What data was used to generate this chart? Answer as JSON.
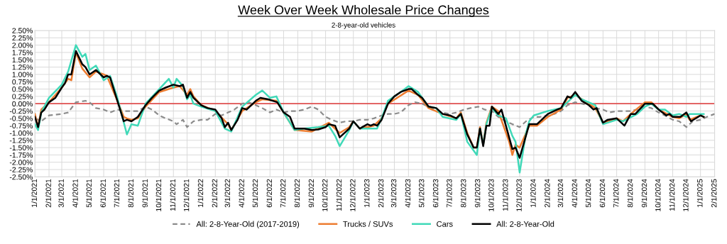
{
  "chart_data": {
    "type": "line",
    "title": "Week Over Week Wholesale Price Changes",
    "subtitle": "2-8-year-old vehicles",
    "xlim": [
      "2021-01-01",
      "2025-02-01"
    ],
    "xticks": [
      {
        "value": "2021-01-01",
        "label": "1/1/2021"
      },
      {
        "value": "2021-02-01",
        "label": "2/1/2021"
      },
      {
        "value": "2021-03-01",
        "label": "3/1/2021"
      },
      {
        "value": "2021-04-01",
        "label": "4/1/2021"
      },
      {
        "value": "2021-05-01",
        "label": "5/1/2021"
      },
      {
        "value": "2021-06-01",
        "label": "6/1/2021"
      },
      {
        "value": "2021-07-01",
        "label": "7/1/2021"
      },
      {
        "value": "2021-08-01",
        "label": "8/1/2021"
      },
      {
        "value": "2021-09-01",
        "label": "9/1/2021"
      },
      {
        "value": "2021-10-01",
        "label": "10/1/2021"
      },
      {
        "value": "2021-11-01",
        "label": "11/1/2021"
      },
      {
        "value": "2021-12-01",
        "label": "12/1/2021"
      },
      {
        "value": "2022-01-01",
        "label": "1/1/2022"
      },
      {
        "value": "2022-02-01",
        "label": "2/1/2022"
      },
      {
        "value": "2022-03-01",
        "label": "3/1/2022"
      },
      {
        "value": "2022-04-01",
        "label": "4/1/2022"
      },
      {
        "value": "2022-05-01",
        "label": "5/1/2022"
      },
      {
        "value": "2022-06-01",
        "label": "6/1/2022"
      },
      {
        "value": "2022-07-01",
        "label": "7/1/2022"
      },
      {
        "value": "2022-08-01",
        "label": "8/1/2022"
      },
      {
        "value": "2022-09-01",
        "label": "9/1/2022"
      },
      {
        "value": "2022-10-01",
        "label": "10/1/2022"
      },
      {
        "value": "2022-11-01",
        "label": "11/1/2022"
      },
      {
        "value": "2022-12-01",
        "label": "12/1/2022"
      },
      {
        "value": "2023-01-01",
        "label": "1/1/2023"
      },
      {
        "value": "2023-02-01",
        "label": "2/1/2023"
      },
      {
        "value": "2023-03-01",
        "label": "3/1/2023"
      },
      {
        "value": "2023-04-01",
        "label": "4/1/2023"
      },
      {
        "value": "2023-05-01",
        "label": "5/1/2023"
      },
      {
        "value": "2023-06-01",
        "label": "6/1/2023"
      },
      {
        "value": "2023-07-01",
        "label": "7/1/2023"
      },
      {
        "value": "2023-08-01",
        "label": "8/1/2023"
      },
      {
        "value": "2023-09-01",
        "label": "9/1/2023"
      },
      {
        "value": "2023-10-01",
        "label": "10/1/2023"
      },
      {
        "value": "2023-11-01",
        "label": "11/1/2023"
      },
      {
        "value": "2023-12-01",
        "label": "12/1/2023"
      },
      {
        "value": "2024-01-01",
        "label": "1/1/2024"
      },
      {
        "value": "2024-02-01",
        "label": "2/1/2024"
      },
      {
        "value": "2024-03-01",
        "label": "3/1/2024"
      },
      {
        "value": "2024-04-01",
        "label": "4/1/2024"
      },
      {
        "value": "2024-05-01",
        "label": "5/1/2024"
      },
      {
        "value": "2024-06-01",
        "label": "6/1/2024"
      },
      {
        "value": "2024-07-01",
        "label": "7/1/2024"
      },
      {
        "value": "2024-08-01",
        "label": "8/1/2024"
      },
      {
        "value": "2024-09-01",
        "label": "9/1/2024"
      },
      {
        "value": "2024-10-01",
        "label": "10/1/2024"
      },
      {
        "value": "2024-11-01",
        "label": "11/1/2024"
      },
      {
        "value": "2024-12-01",
        "label": "12/1/2024"
      },
      {
        "value": "2025-01-01",
        "label": "1/1/2025"
      },
      {
        "value": "2025-02-01",
        "label": "2/1/2025"
      }
    ],
    "ylim": [
      -2.5,
      2.5
    ],
    "yticks": [
      {
        "value": -2.5,
        "label": "-2.50%"
      },
      {
        "value": -2.25,
        "label": "-2.25%"
      },
      {
        "value": -2.0,
        "label": "-2.00%"
      },
      {
        "value": -1.75,
        "label": "-1.75%"
      },
      {
        "value": -1.5,
        "label": "-1.50%"
      },
      {
        "value": -1.25,
        "label": "-1.25%"
      },
      {
        "value": -1.0,
        "label": "-1.00%"
      },
      {
        "value": -0.75,
        "label": "-0.75%"
      },
      {
        "value": -0.5,
        "label": "-0.50%"
      },
      {
        "value": -0.25,
        "label": "-0.25%"
      },
      {
        "value": 0,
        "label": "0.00%"
      },
      {
        "value": 0.25,
        "label": "0.25%"
      },
      {
        "value": 0.5,
        "label": "0.50%"
      },
      {
        "value": 0.75,
        "label": "0.75%"
      },
      {
        "value": 1.0,
        "label": "1.00%"
      },
      {
        "value": 1.25,
        "label": "1.25%"
      },
      {
        "value": 1.5,
        "label": "1.50%"
      },
      {
        "value": 1.75,
        "label": "1.75%"
      },
      {
        "value": 2.0,
        "label": "2.00%"
      },
      {
        "value": 2.25,
        "label": "2.25%"
      },
      {
        "value": 2.5,
        "label": "2.50%"
      }
    ],
    "grid": true,
    "legend": "bottom",
    "marker": "none",
    "ref_lines": [
      {
        "axis": "y",
        "value": 0,
        "label": null,
        "color": "#e05050",
        "line_style": "solid"
      }
    ],
    "series": [
      {
        "name": "All: 2-8-Year-Old (2017-2019)",
        "color": "#8c8c8c",
        "line_style": "dashed",
        "x": [
          "2021-01-01",
          "2021-01-15",
          "2021-02-01",
          "2021-03-01",
          "2021-03-15",
          "2021-04-01",
          "2021-04-22",
          "2021-05-01",
          "2021-05-15",
          "2021-06-01",
          "2021-06-15",
          "2021-07-01",
          "2021-07-15",
          "2021-08-01",
          "2021-08-15",
          "2021-09-01",
          "2021-09-15",
          "2021-10-01",
          "2021-10-15",
          "2021-11-01",
          "2021-11-08",
          "2021-11-22",
          "2021-12-01",
          "2021-12-15",
          "2022-01-01",
          "2022-01-15",
          "2022-02-01",
          "2022-02-15",
          "2022-03-01",
          "2022-03-15",
          "2022-04-01",
          "2022-04-15",
          "2022-05-01",
          "2022-05-15",
          "2022-06-01",
          "2022-06-15",
          "2022-07-01",
          "2022-07-15",
          "2022-08-01",
          "2022-08-15",
          "2022-09-01",
          "2022-09-15",
          "2022-10-01",
          "2022-10-15",
          "2022-11-01",
          "2022-11-15",
          "2022-12-01",
          "2022-12-15",
          "2023-01-01",
          "2023-01-15",
          "2023-02-01",
          "2023-02-15",
          "2023-03-01",
          "2023-03-15",
          "2023-04-01",
          "2023-04-15",
          "2023-05-01",
          "2023-05-15",
          "2023-06-01",
          "2023-06-15",
          "2023-07-01",
          "2023-07-15",
          "2023-08-01",
          "2023-08-15",
          "2023-09-01",
          "2023-09-15",
          "2023-10-01",
          "2023-10-15",
          "2023-11-01",
          "2023-11-15",
          "2023-12-01",
          "2023-12-15",
          "2024-01-01",
          "2024-01-15",
          "2024-02-01",
          "2024-02-15",
          "2024-03-01",
          "2024-03-15",
          "2024-04-01",
          "2024-04-15",
          "2024-05-01",
          "2024-05-15",
          "2024-06-01",
          "2024-06-15",
          "2024-07-01",
          "2024-07-15",
          "2024-08-01",
          "2024-08-15",
          "2024-09-01",
          "2024-09-15",
          "2024-10-01",
          "2024-10-15",
          "2024-11-01",
          "2024-11-15",
          "2024-12-01",
          "2024-12-15",
          "2025-01-01",
          "2025-01-15",
          "2025-02-01"
        ],
        "values": [
          -0.5,
          -0.6,
          -0.4,
          -0.35,
          -0.3,
          0.05,
          0.1,
          0.05,
          -0.15,
          -0.2,
          -0.3,
          -0.2,
          -0.25,
          -0.25,
          -0.25,
          -0.1,
          -0.2,
          -0.4,
          -0.5,
          -0.6,
          -0.7,
          -0.55,
          -0.8,
          -0.6,
          -0.55,
          -0.55,
          -0.35,
          -0.4,
          -0.3,
          -0.2,
          0.0,
          0.05,
          -0.05,
          -0.15,
          -0.3,
          -0.2,
          -0.3,
          -0.25,
          -0.25,
          -0.2,
          -0.1,
          -0.2,
          -0.45,
          -0.55,
          -0.65,
          -0.6,
          -0.6,
          -0.55,
          -0.55,
          -0.5,
          -0.4,
          -0.35,
          -0.35,
          -0.3,
          -0.05,
          0.05,
          0.0,
          -0.1,
          -0.25,
          -0.3,
          -0.35,
          -0.3,
          -0.2,
          -0.15,
          -0.1,
          -0.2,
          -0.25,
          -0.45,
          -0.6,
          -0.7,
          -0.8,
          -0.6,
          -0.45,
          -0.45,
          -0.4,
          -0.35,
          -0.25,
          -0.05,
          0.05,
          0.0,
          -0.05,
          -0.15,
          -0.2,
          -0.3,
          -0.25,
          -0.25,
          -0.25,
          -0.2,
          -0.1,
          -0.15,
          -0.3,
          -0.4,
          -0.55,
          -0.6,
          -0.8,
          -0.6,
          -0.55,
          -0.45,
          -0.35
        ]
      },
      {
        "name": "Trucks / SUVs",
        "color": "#ed7d31",
        "x": [
          "2021-01-01",
          "2021-01-08",
          "2021-01-15",
          "2021-02-01",
          "2021-03-01",
          "2021-03-15",
          "2021-03-22",
          "2021-04-01",
          "2021-04-15",
          "2021-05-01",
          "2021-05-15",
          "2021-06-01",
          "2021-06-08",
          "2021-07-01",
          "2021-07-15",
          "2021-07-22",
          "2021-08-01",
          "2021-08-15",
          "2021-09-01",
          "2021-10-01",
          "2021-11-01",
          "2021-11-15",
          "2021-12-01",
          "2021-12-08",
          "2021-12-15",
          "2022-01-01",
          "2022-02-01",
          "2022-03-01",
          "2022-03-08",
          "2022-04-01",
          "2022-05-01",
          "2022-05-15",
          "2022-06-15",
          "2022-07-01",
          "2022-07-25",
          "2022-09-01",
          "2022-10-08",
          "2022-11-01",
          "2022-11-22",
          "2022-12-01",
          "2022-12-15",
          "2023-01-15",
          "2023-02-01",
          "2023-02-15",
          "2023-04-01",
          "2023-04-22",
          "2023-05-15",
          "2023-06-15",
          "2023-07-15",
          "2023-07-25",
          "2023-08-08",
          "2023-08-22",
          "2023-08-29",
          "2023-09-05",
          "2023-09-12",
          "2023-09-19",
          "2023-10-01",
          "2023-10-15",
          "2023-11-08",
          "2023-11-15",
          "2023-11-22",
          "2023-12-01",
          "2023-12-22",
          "2024-01-08",
          "2024-02-01",
          "2024-03-01",
          "2024-03-15",
          "2024-04-01",
          "2024-05-01",
          "2024-05-15",
          "2024-06-01",
          "2024-07-01",
          "2024-07-15",
          "2024-08-01",
          "2024-09-01",
          "2024-09-15",
          "2024-10-01",
          "2024-11-01",
          "2024-11-15",
          "2024-12-01",
          "2024-12-08",
          "2025-01-01",
          "2025-01-08"
        ],
        "values": [
          -0.35,
          -0.8,
          -0.2,
          0.05,
          0.55,
          0.85,
          0.8,
          1.75,
          1.2,
          0.9,
          1.1,
          1.0,
          0.95,
          0.1,
          -0.45,
          -0.5,
          -0.55,
          -0.5,
          -0.1,
          0.4,
          0.55,
          0.6,
          0.3,
          0.5,
          0.25,
          -0.05,
          -0.25,
          -0.7,
          -0.9,
          -0.25,
          0.05,
          0.15,
          0.1,
          -0.3,
          -0.9,
          -0.95,
          -0.65,
          -1.0,
          -0.8,
          -0.6,
          -0.85,
          -0.75,
          -0.5,
          0.0,
          0.45,
          0.3,
          -0.15,
          -0.35,
          -0.5,
          -0.3,
          -1.0,
          -1.5,
          -1.5,
          -0.8,
          -1.4,
          -0.65,
          -0.1,
          -0.25,
          -1.3,
          -1.75,
          -1.4,
          -1.5,
          -0.75,
          -0.75,
          -0.45,
          -0.2,
          0.2,
          0.3,
          0.0,
          -0.15,
          -0.65,
          -0.5,
          -0.6,
          -0.35,
          0.05,
          0.05,
          -0.2,
          -0.45,
          -0.5,
          -0.35,
          -0.55,
          -0.4,
          -0.45
        ]
      },
      {
        "name": "Cars",
        "color": "#40d9b8",
        "x": [
          "2021-01-01",
          "2021-01-08",
          "2021-01-15",
          "2021-02-01",
          "2021-03-01",
          "2021-03-15",
          "2021-04-01",
          "2021-04-15",
          "2021-04-22",
          "2021-05-01",
          "2021-05-15",
          "2021-06-01",
          "2021-06-15",
          "2021-07-01",
          "2021-07-22",
          "2021-08-01",
          "2021-08-15",
          "2021-09-01",
          "2021-10-01",
          "2021-10-22",
          "2021-11-01",
          "2021-11-08",
          "2021-11-22",
          "2021-12-01",
          "2021-12-08",
          "2021-12-15",
          "2022-01-01",
          "2022-02-01",
          "2022-02-22",
          "2022-03-08",
          "2022-04-01",
          "2022-05-01",
          "2022-05-15",
          "2022-06-01",
          "2022-06-15",
          "2022-07-01",
          "2022-07-25",
          "2022-08-15",
          "2022-09-15",
          "2022-10-08",
          "2022-10-22",
          "2022-11-01",
          "2022-11-22",
          "2022-12-01",
          "2022-12-15",
          "2023-01-22",
          "2023-02-01",
          "2023-02-15",
          "2023-03-15",
          "2023-04-01",
          "2023-04-22",
          "2023-05-15",
          "2023-06-01",
          "2023-06-15",
          "2023-07-15",
          "2023-07-25",
          "2023-08-08",
          "2023-08-22",
          "2023-08-29",
          "2023-09-05",
          "2023-09-12",
          "2023-09-19",
          "2023-10-01",
          "2023-10-15",
          "2023-11-01",
          "2023-11-15",
          "2023-11-22",
          "2023-12-01",
          "2023-12-15",
          "2023-12-22",
          "2024-01-01",
          "2024-02-01",
          "2024-03-01",
          "2024-04-01",
          "2024-04-15",
          "2024-05-15",
          "2024-06-01",
          "2024-07-01",
          "2024-07-15",
          "2024-08-15",
          "2024-09-01",
          "2024-09-15",
          "2024-10-01",
          "2024-10-15",
          "2024-11-01",
          "2024-11-15",
          "2024-12-01",
          "2024-12-08",
          "2025-01-01",
          "2025-01-08"
        ],
        "values": [
          -0.7,
          -0.9,
          -0.3,
          0.2,
          0.65,
          1.1,
          2.0,
          1.6,
          1.7,
          1.15,
          1.3,
          0.8,
          0.95,
          0.2,
          -1.05,
          -0.7,
          -0.75,
          0.0,
          0.5,
          0.85,
          0.55,
          0.85,
          0.6,
          0.15,
          0.3,
          0.0,
          -0.1,
          -0.25,
          -0.85,
          -0.95,
          -0.1,
          0.3,
          0.45,
          0.2,
          0.25,
          -0.3,
          -0.9,
          -0.85,
          -0.8,
          -0.75,
          -1.1,
          -1.45,
          -0.9,
          -0.6,
          -0.85,
          -0.85,
          -0.5,
          0.1,
          0.4,
          0.6,
          0.4,
          -0.1,
          -0.15,
          -0.45,
          -0.55,
          -0.35,
          -1.3,
          -1.6,
          -1.75,
          -0.85,
          -1.4,
          -0.7,
          -0.15,
          -0.4,
          -0.5,
          -1.1,
          -1.3,
          -2.35,
          -1.0,
          -0.6,
          -0.4,
          -0.25,
          -0.15,
          0.3,
          0.15,
          -0.05,
          -0.7,
          -0.55,
          -0.6,
          -0.35,
          -0.1,
          0.0,
          -0.2,
          -0.2,
          -0.4,
          -0.35,
          -0.45,
          -0.35,
          -0.35,
          -0.35
        ]
      },
      {
        "name": "All: 2-8-Year-Old",
        "color": "#000000",
        "x": [
          "2021-01-01",
          "2021-01-08",
          "2021-01-15",
          "2021-01-22",
          "2021-02-01",
          "2021-02-15",
          "2021-03-01",
          "2021-03-08",
          "2021-03-15",
          "2021-03-22",
          "2021-04-01",
          "2021-04-15",
          "2021-04-22",
          "2021-05-01",
          "2021-05-15",
          "2021-06-01",
          "2021-06-08",
          "2021-06-15",
          "2021-07-01",
          "2021-07-15",
          "2021-07-22",
          "2021-08-01",
          "2021-08-15",
          "2021-09-01",
          "2021-09-15",
          "2021-10-01",
          "2021-10-15",
          "2021-11-01",
          "2021-11-15",
          "2021-11-22",
          "2021-12-01",
          "2021-12-08",
          "2021-12-15",
          "2022-01-01",
          "2022-01-15",
          "2022-02-01",
          "2022-02-15",
          "2022-02-22",
          "2022-03-01",
          "2022-03-08",
          "2022-03-22",
          "2022-04-01",
          "2022-04-11",
          "2022-05-01",
          "2022-05-11",
          "2022-05-28",
          "2022-06-17",
          "2022-07-01",
          "2022-07-15",
          "2022-07-25",
          "2022-08-15",
          "2022-09-01",
          "2022-09-15",
          "2022-10-01",
          "2022-10-08",
          "2022-10-22",
          "2022-11-01",
          "2022-11-15",
          "2022-11-22",
          "2022-12-01",
          "2022-12-15",
          "2023-01-01",
          "2023-01-08",
          "2023-01-15",
          "2023-01-22",
          "2023-02-01",
          "2023-02-15",
          "2023-03-01",
          "2023-03-15",
          "2023-04-01",
          "2023-04-08",
          "2023-04-22",
          "2023-05-01",
          "2023-05-15",
          "2023-06-01",
          "2023-06-15",
          "2023-07-01",
          "2023-07-15",
          "2023-07-25",
          "2023-08-08",
          "2023-08-22",
          "2023-08-29",
          "2023-09-05",
          "2023-09-12",
          "2023-09-19",
          "2023-09-26",
          "2023-10-01",
          "2023-10-15",
          "2023-10-22",
          "2023-11-15",
          "2023-11-22",
          "2023-12-01",
          "2023-12-22",
          "2024-01-08",
          "2024-02-01",
          "2024-02-22",
          "2024-03-01",
          "2024-03-15",
          "2024-03-22",
          "2024-04-01",
          "2024-04-15",
          "2024-05-01",
          "2024-05-11",
          "2024-05-18",
          "2024-06-01",
          "2024-06-11",
          "2024-07-01",
          "2024-07-18",
          "2024-08-01",
          "2024-08-11",
          "2024-09-01",
          "2024-09-18",
          "2024-10-01",
          "2024-10-18",
          "2024-10-25",
          "2024-11-01",
          "2024-11-18",
          "2024-12-01",
          "2024-12-11",
          "2025-01-01",
          "2025-01-08"
        ],
        "values": [
          -0.45,
          -0.8,
          -0.3,
          -0.2,
          0.05,
          0.2,
          0.55,
          0.7,
          1.0,
          1.0,
          1.8,
          1.35,
          1.25,
          1.0,
          1.15,
          0.9,
          0.95,
          0.9,
          0.1,
          -0.6,
          -0.55,
          -0.6,
          -0.45,
          -0.05,
          0.2,
          0.45,
          0.55,
          0.65,
          0.6,
          0.65,
          0.2,
          0.4,
          0.2,
          -0.05,
          -0.15,
          -0.2,
          -0.5,
          -0.8,
          -0.65,
          -0.9,
          -0.55,
          -0.15,
          -0.2,
          0.1,
          0.2,
          0.15,
          0.05,
          -0.3,
          -0.45,
          -0.85,
          -0.85,
          -0.9,
          -0.88,
          -0.8,
          -0.7,
          -0.75,
          -1.15,
          -0.95,
          -0.85,
          -0.6,
          -0.85,
          -0.7,
          -0.75,
          -0.7,
          -0.75,
          -0.55,
          0.0,
          0.25,
          0.4,
          0.5,
          0.5,
          0.3,
          0.2,
          -0.1,
          -0.15,
          -0.35,
          -0.4,
          -0.5,
          -0.35,
          -1.05,
          -1.5,
          -1.5,
          -0.85,
          -1.45,
          -0.75,
          -0.75,
          -0.1,
          -0.35,
          -0.2,
          -1.55,
          -1.5,
          -1.85,
          -0.7,
          -0.7,
          -0.35,
          -0.2,
          -0.15,
          0.25,
          0.2,
          0.4,
          0.1,
          -0.05,
          -0.2,
          -0.15,
          -0.65,
          -0.55,
          -0.5,
          -0.75,
          -0.35,
          -0.35,
          0.0,
          0.0,
          -0.2,
          -0.4,
          -0.35,
          -0.45,
          -0.45,
          -0.3,
          -0.6,
          -0.4,
          -0.45
        ]
      }
    ]
  }
}
